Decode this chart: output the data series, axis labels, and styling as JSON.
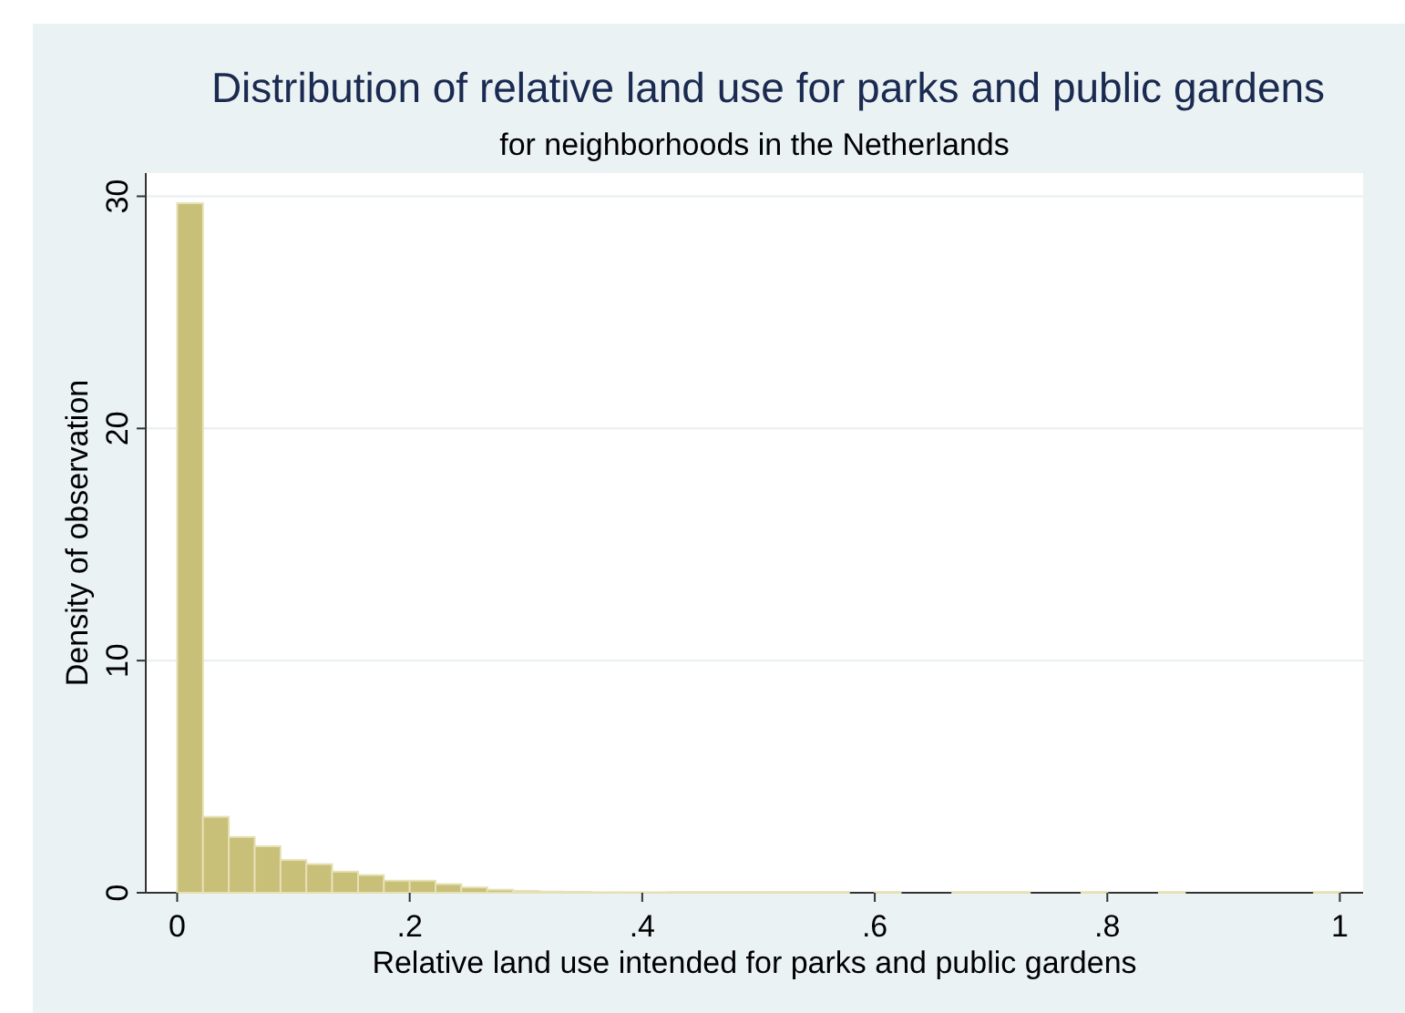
{
  "chart_data": {
    "type": "histogram",
    "title": "Distribution of relative land use for parks and public gardens",
    "subtitle": "for neighborhoods in the Netherlands",
    "xlabel": "Relative land use intended for parks and public gardens",
    "ylabel": "Density of observation",
    "bins": [
      0,
      0.0222,
      0.0444,
      0.0667,
      0.0889,
      0.1111,
      0.1333,
      0.1556,
      0.1778,
      0.2,
      0.2222,
      0.2444,
      0.2667,
      0.2889,
      0.3111,
      0.3333,
      0.3556,
      0.3778,
      0.4,
      0.4222,
      0.4444,
      0.4667,
      0.4889,
      0.5111,
      0.5333,
      0.5556,
      0.5778,
      0.6,
      0.6222,
      0.6444,
      0.6667,
      0.6889,
      0.7111,
      0.7333,
      0.7556,
      0.7778,
      0.8,
      0.8222,
      0.8444,
      0.8667,
      0.8889,
      0.9111,
      0.9333,
      0.9556,
      0.9778,
      1
    ],
    "values": [
      29.7,
      3.27,
      2.4,
      2.0,
      1.41,
      1.23,
      0.91,
      0.76,
      0.52,
      0.52,
      0.37,
      0.23,
      0.13,
      0.08,
      0.05,
      0.04,
      0.02,
      0.02,
      0.02,
      0.03,
      0.03,
      0.03,
      0.03,
      0.03,
      0.03,
      0.03,
      0,
      0.03,
      0,
      0,
      0.03,
      0.03,
      0.03,
      0,
      0,
      0.03,
      0,
      0,
      0.03,
      0,
      0,
      0,
      0,
      0,
      0.03
    ],
    "color": "#c8bf78",
    "xlim": [
      -0.027,
      1.02
    ],
    "ylim": [
      0,
      31
    ],
    "xticks": [
      0,
      {
        "value": 0.2,
        "label": ".2"
      },
      {
        "value": 0.4,
        "label": ".4"
      },
      {
        "value": 0.6,
        "label": ".6"
      },
      {
        "value": 0.8,
        "label": ".8"
      },
      1
    ],
    "yticks": [
      0,
      10,
      20,
      30
    ],
    "grid": "y"
  }
}
